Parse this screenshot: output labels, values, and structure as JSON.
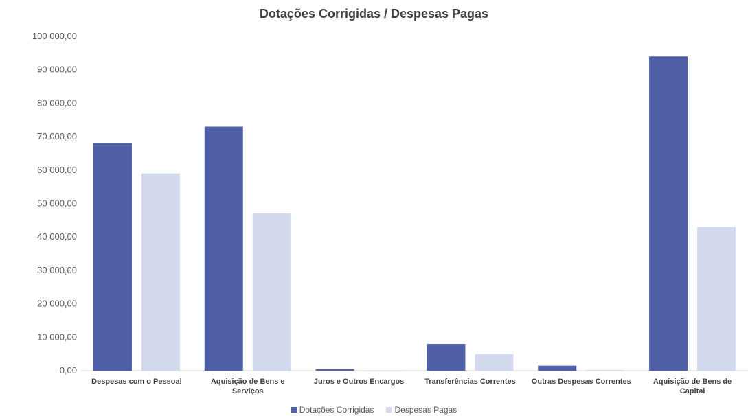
{
  "chart_data": {
    "type": "bar",
    "title": "Dotações Corrigidas / Despesas Pagas",
    "xlabel": "",
    "ylabel": "",
    "ylim": [
      0,
      100000
    ],
    "yticks": [
      "0,00",
      "10 000,00",
      "20 000,00",
      "30 000,00",
      "40 000,00",
      "50 000,00",
      "60 000,00",
      "70 000,00",
      "80 000,00",
      "90 000,00",
      "100 000,00"
    ],
    "categories": [
      [
        "Despesas com o Pessoal"
      ],
      [
        "Aquisição de Bens e",
        "Serviços"
      ],
      [
        "Juros e Outros Encargos"
      ],
      [
        "Transferências Correntes"
      ],
      [
        "Outras Despesas Correntes"
      ],
      [
        "Aquisição de Bens de",
        "Capital"
      ]
    ],
    "series": [
      {
        "name": "Dotações Corrigidas",
        "color": "#4f5fa8",
        "values": [
          68000,
          73000,
          400,
          8000,
          1500,
          94000
        ]
      },
      {
        "name": "Despesas Pagas",
        "color": "#d3daed",
        "values": [
          59000,
          47000,
          100,
          5000,
          200,
          43000
        ]
      }
    ],
    "grid": false,
    "legend": "bottom"
  }
}
